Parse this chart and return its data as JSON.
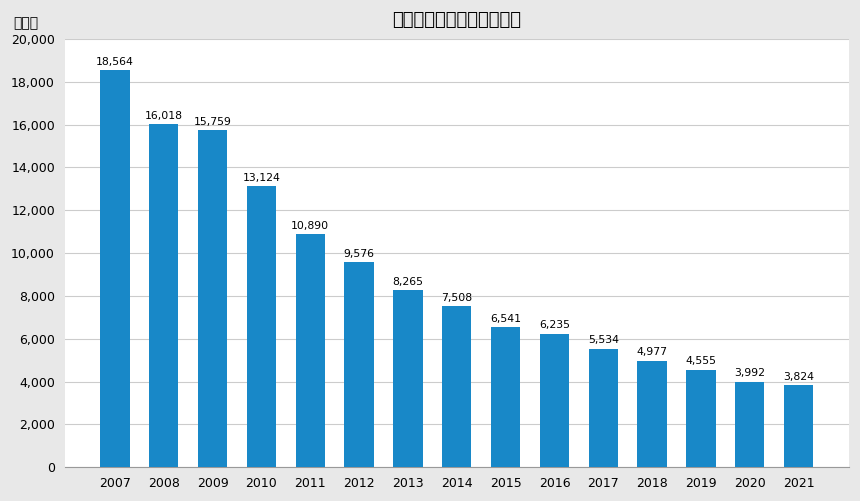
{
  "title": "全国のホームレス人数推移",
  "ylabel": "（人）",
  "years": [
    2007,
    2008,
    2009,
    2010,
    2011,
    2012,
    2013,
    2014,
    2015,
    2016,
    2017,
    2018,
    2019,
    2020,
    2021
  ],
  "values": [
    18564,
    16018,
    15759,
    13124,
    10890,
    9576,
    8265,
    7508,
    6541,
    6235,
    5534,
    4977,
    4555,
    3992,
    3824
  ],
  "bar_color": "#1888c8",
  "plot_bg_color": "#ffffff",
  "fig_bg_color": "#e8e8e8",
  "grid_color": "#cccccc",
  "ylim": [
    0,
    20000
  ],
  "yticks": [
    0,
    2000,
    4000,
    6000,
    8000,
    10000,
    12000,
    14000,
    16000,
    18000,
    20000
  ],
  "title_fontsize": 13,
  "label_fontsize": 8.5,
  "tick_fontsize": 9,
  "ylabel_fontsize": 10,
  "bar_label_fontsize": 7.8
}
